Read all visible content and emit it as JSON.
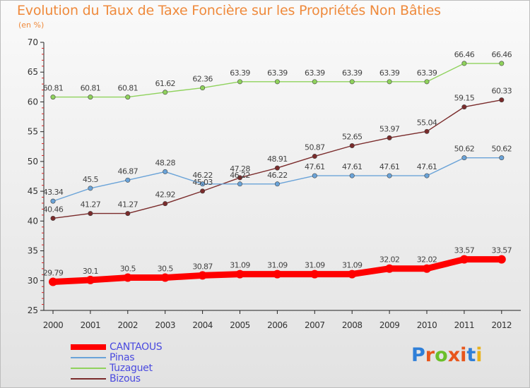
{
  "title": "Evolution du Taux de Taxe Foncière sur les Propriétés Non Bâties",
  "subtitle": "(en %)",
  "logo": {
    "text": "Proxiti",
    "colors": [
      "#2f7fd8",
      "#e8561c",
      "#6bbf2a",
      "#e8561c",
      "#e8561c",
      "#2f7fd8",
      "#e8b21c"
    ]
  },
  "chart_data": {
    "type": "line",
    "categories": [
      "2000",
      "2001",
      "2002",
      "2003",
      "2004",
      "2005",
      "2006",
      "2007",
      "2008",
      "2009",
      "2010",
      "2011",
      "2012"
    ],
    "ylim": [
      25,
      70
    ],
    "yticks": [
      "25",
      "30",
      "35",
      "40",
      "45",
      "50",
      "55",
      "60",
      "65",
      "70"
    ],
    "grid": false,
    "legend_position": "bottom-left",
    "series": [
      {
        "name": "CANTAOUS",
        "color": "#ff0000",
        "values": [
          29.79,
          30.1,
          30.5,
          30.5,
          30.87,
          31.09,
          31.09,
          31.09,
          31.09,
          32.02,
          32.02,
          33.57,
          33.57
        ],
        "labels": [
          "29.79",
          "30.1",
          "30.5",
          "30.5",
          "30.87",
          "31.09",
          "31.09",
          "31.09",
          "31.09",
          "32.02",
          "32.02",
          "33.57",
          "33.57"
        ]
      },
      {
        "name": "Pinas",
        "color": "#6aa3d8",
        "values": [
          43.34,
          45.5,
          46.87,
          48.28,
          46.22,
          46.22,
          46.22,
          47.61,
          47.61,
          47.61,
          47.61,
          50.62,
          50.62
        ],
        "labels": [
          "43.34",
          "45.5",
          "46.87",
          "48.28",
          "46.22",
          "46.22",
          "46.22",
          "47.61",
          "47.61",
          "47.61",
          "47.61",
          "50.62",
          "50.62"
        ]
      },
      {
        "name": "Tuzaguet",
        "color": "#8fd25c",
        "values": [
          60.81,
          60.81,
          60.81,
          61.62,
          62.36,
          63.39,
          63.39,
          63.39,
          63.39,
          63.39,
          63.39,
          66.46,
          66.46
        ],
        "labels": [
          "60.81",
          "60.81",
          "60.81",
          "61.62",
          "62.36",
          "63.39",
          "63.39",
          "63.39",
          "63.39",
          "63.39",
          "63.39",
          "66.46",
          "66.46"
        ]
      },
      {
        "name": "Bizous",
        "color": "#7a2b2b",
        "values": [
          40.46,
          41.27,
          41.27,
          42.92,
          45.03,
          47.28,
          48.91,
          50.87,
          52.65,
          53.97,
          55.04,
          59.15,
          60.33
        ],
        "labels": [
          "40.46",
          "41.27",
          "41.27",
          "42.92",
          "45.03",
          "47.28",
          "48.91",
          "50.87",
          "52.65",
          "53.97",
          "55.04",
          "59.15",
          "60.33"
        ]
      }
    ]
  }
}
